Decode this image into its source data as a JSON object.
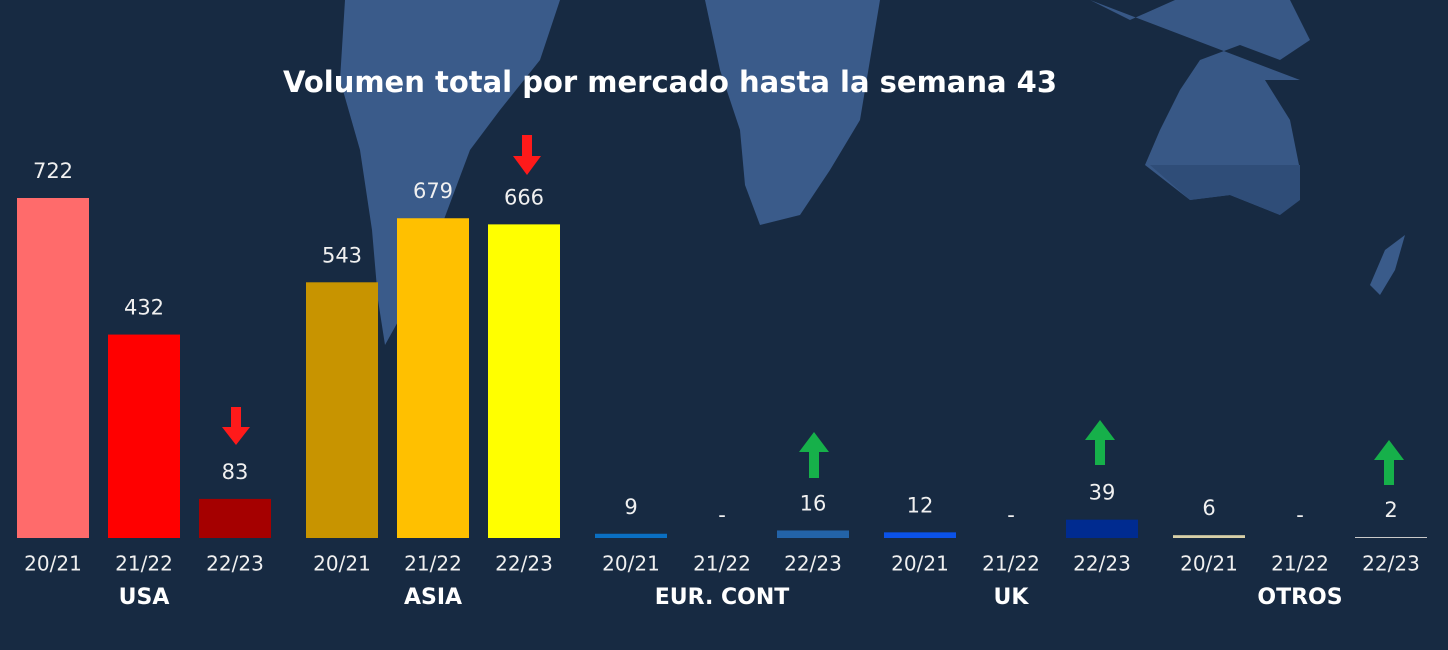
{
  "chart_data": {
    "type": "bar",
    "title": "Volumen total por mercado hasta la semana 43",
    "groups": [
      {
        "name": "USA",
        "categories": [
          "20/21",
          "21/22",
          "22/23"
        ],
        "values": [
          722,
          432,
          83
        ],
        "colors": [
          "#ff6b6b",
          "#ff0000",
          "#a50000"
        ]
      },
      {
        "name": "ASIA",
        "categories": [
          "20/21",
          "21/22",
          "22/23"
        ],
        "values": [
          543,
          679,
          666
        ],
        "colors": [
          "#c89400",
          "#ffc000",
          "#ffff00"
        ]
      },
      {
        "name": "EUR. CONT",
        "categories": [
          "20/21",
          "21/22",
          "22/23"
        ],
        "values": [
          9,
          null,
          16
        ],
        "value_labels": [
          "9",
          "-",
          "16"
        ],
        "colors": [
          "#0a6fc2",
          "#0a6fc2",
          "#2363a8"
        ]
      },
      {
        "name": "UK",
        "categories": [
          "20/21",
          "21/22",
          "22/23"
        ],
        "values": [
          12,
          null,
          39
        ],
        "value_labels": [
          "12",
          "-",
          "39"
        ],
        "colors": [
          "#0b52e8",
          "#0b52e8",
          "#002b90"
        ]
      },
      {
        "name": "OTROS",
        "categories": [
          "20/21",
          "21/22",
          "22/23"
        ],
        "values": [
          6,
          null,
          2
        ],
        "value_labels": [
          "6",
          "-",
          "2"
        ],
        "colors": [
          "#d8d0a8",
          "#d8d0a8",
          "#c9c9c9"
        ]
      }
    ]
  }
}
